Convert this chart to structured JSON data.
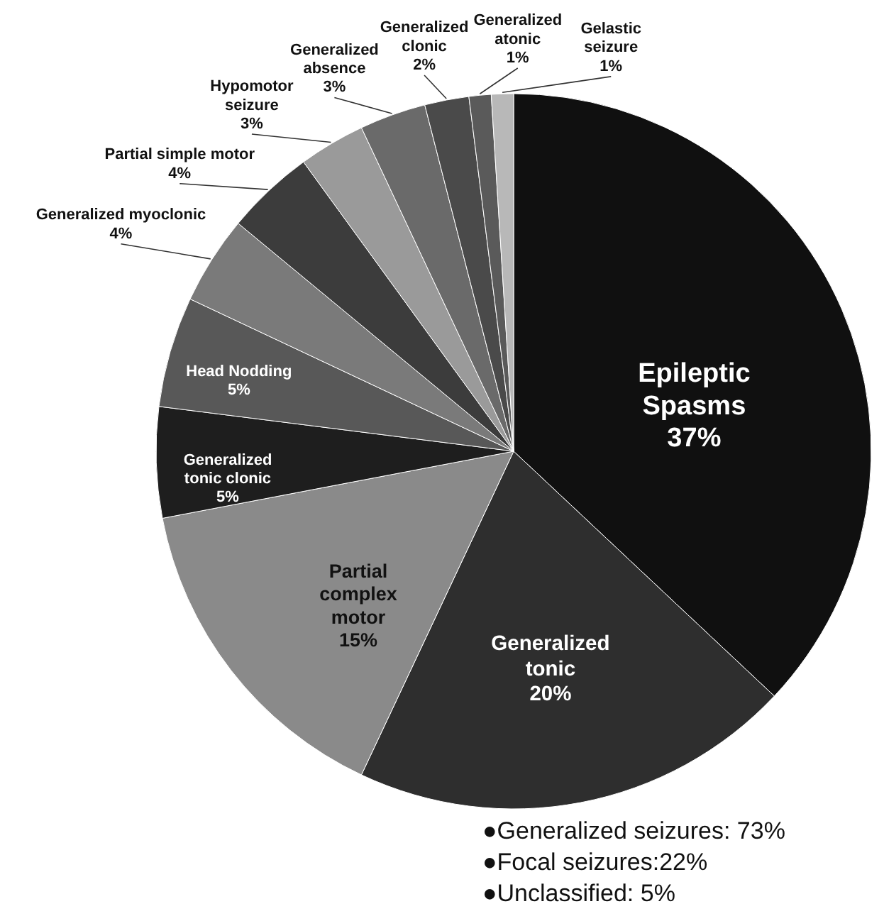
{
  "chart_data": {
    "type": "pie",
    "categories": [
      "Epileptic Spasms",
      "Generalized tonic",
      "Partial complex motor",
      "Generalized tonic clonic",
      "Head Nodding",
      "Generalized myoclonic",
      "Partial simple motor",
      "Hypomotor seizure",
      "Generalized absence",
      "Generalized clonic",
      "Generalized atonic",
      "Gelastic seizure"
    ],
    "values": [
      37,
      20,
      15,
      5,
      5,
      4,
      4,
      3,
      3,
      2,
      1,
      1
    ],
    "colors": [
      "#101010",
      "#2e2e2e",
      "#8a8a8a",
      "#1e1e1e",
      "#585858",
      "#7a7a7a",
      "#3c3c3c",
      "#9a9a9a",
      "#6a6a6a",
      "#4a4a4a",
      "#5a5a5a",
      "#b8b8b8"
    ],
    "value_labels": [
      "37%",
      "20%",
      "15%",
      "5%",
      "5%",
      "4%",
      "4%",
      "3%",
      "3%",
      "2%",
      "1%",
      "1%"
    ],
    "annotations": [
      "●Generalized seizures: 73%",
      "●Focal seizures:22%",
      "●Unclassified: 5%"
    ]
  }
}
